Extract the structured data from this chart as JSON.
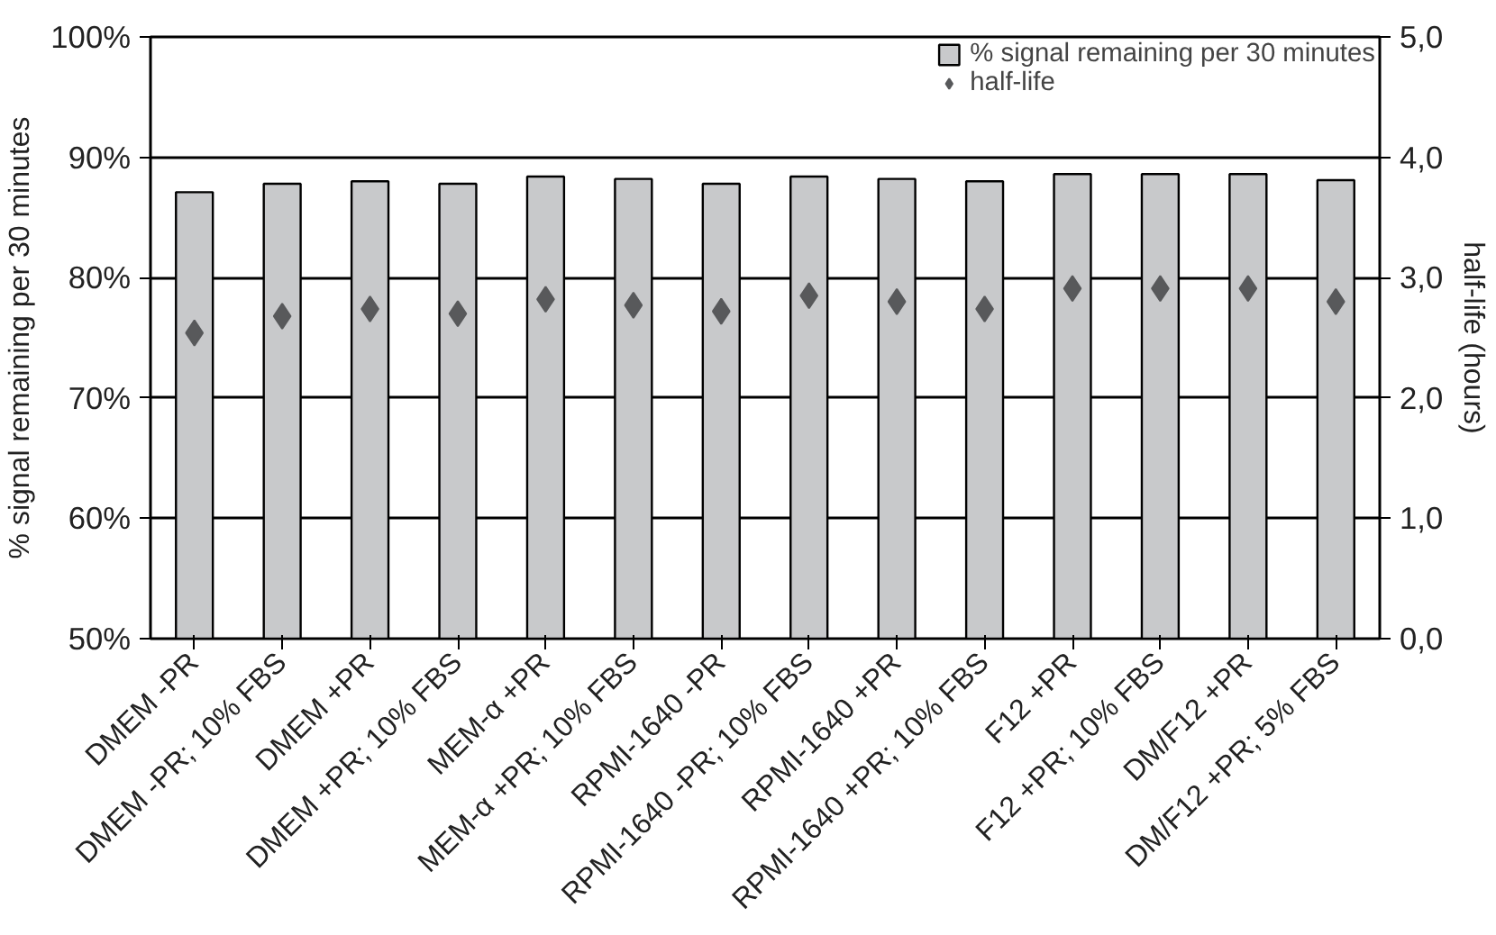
{
  "chart_data": {
    "type": "bar",
    "categories": [
      "DMEM -PR",
      "DMEM -PR; 10% FBS",
      "DMEM +PR",
      "DMEM +PR; 10% FBS",
      "MEM-α +PR",
      "MEM-α +PR; 10% FBS",
      "RPMI-1640 -PR",
      "RPMI-1640 -PR; 10% FBS",
      "RPMI-1640 +PR",
      "RPMI-1640 +PR; 10% FBS",
      "F12 +PR",
      "F12 +PR; 10% FBS",
      "DM/F12 +PR",
      "DM/F12 +PR; 5% FBS"
    ],
    "series": [
      {
        "name": "% signal remaining per 30 minutes",
        "color": "#c8c9cb",
        "values": [
          87.1,
          87.8,
          88.0,
          87.8,
          88.4,
          88.2,
          87.8,
          88.4,
          88.2,
          88.0,
          88.6,
          88.6,
          88.6,
          88.1
        ]
      },
      {
        "name": "half-life",
        "type": "scatter",
        "axis": "y2",
        "marker": "diamond",
        "color": "#58595b",
        "values": [
          2.54,
          2.68,
          2.74,
          2.7,
          2.82,
          2.77,
          2.72,
          2.85,
          2.8,
          2.74,
          2.91,
          2.91,
          2.91,
          2.8
        ]
      }
    ],
    "ylabel": "% signal remaining per 30 minutes",
    "y2label": "half-life (hours)",
    "ylim": [
      50,
      100
    ],
    "yticks": [
      {
        "value": 50,
        "label": "50%"
      },
      {
        "value": 60,
        "label": "60%"
      },
      {
        "value": 70,
        "label": "70%"
      },
      {
        "value": 80,
        "label": "80%"
      },
      {
        "value": 90,
        "label": "90%"
      },
      {
        "value": 100,
        "label": "100%"
      }
    ],
    "y2lim": [
      0,
      5
    ],
    "y2ticks": [
      {
        "value": 0,
        "label": "0,0"
      },
      {
        "value": 1,
        "label": "1,0"
      },
      {
        "value": 2,
        "label": "2,0"
      },
      {
        "value": 3,
        "label": "3,0"
      },
      {
        "value": 4,
        "label": "4,0"
      },
      {
        "value": 5,
        "label": "5,0"
      }
    ],
    "grid": "y",
    "legend": "top right"
  }
}
